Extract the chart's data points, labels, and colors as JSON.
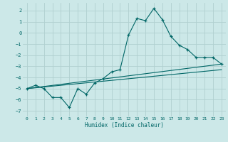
{
  "xlabel": "Humidex (Indice chaleur)",
  "bg_color": "#cce8e8",
  "grid_color": "#b0d0d0",
  "line_color": "#006666",
  "xlim": [
    -0.5,
    23.5
  ],
  "ylim": [
    -7.5,
    2.7
  ],
  "yticks": [
    -7,
    -6,
    -5,
    -4,
    -3,
    -2,
    -1,
    0,
    1,
    2
  ],
  "xticks": [
    0,
    1,
    2,
    3,
    4,
    5,
    6,
    7,
    8,
    9,
    10,
    11,
    12,
    13,
    14,
    15,
    16,
    17,
    18,
    19,
    20,
    21,
    22,
    23
  ],
  "main_x": [
    0,
    1,
    2,
    3,
    4,
    5,
    6,
    7,
    8,
    9,
    10,
    11,
    12,
    13,
    14,
    15,
    16,
    17,
    18,
    19,
    20,
    21,
    22,
    23
  ],
  "main_y": [
    -5.0,
    -4.7,
    -5.0,
    -5.8,
    -5.8,
    -6.7,
    -5.0,
    -5.5,
    -4.5,
    -4.1,
    -3.5,
    -3.3,
    -0.2,
    1.3,
    1.1,
    2.2,
    1.2,
    -0.3,
    -1.1,
    -1.5,
    -2.2,
    -2.2,
    -2.2,
    -2.8
  ],
  "line2_x": [
    0,
    23
  ],
  "line2_y": [
    -5.0,
    -2.8
  ],
  "line3_x": [
    0,
    23
  ],
  "line3_y": [
    -5.0,
    -3.3
  ]
}
